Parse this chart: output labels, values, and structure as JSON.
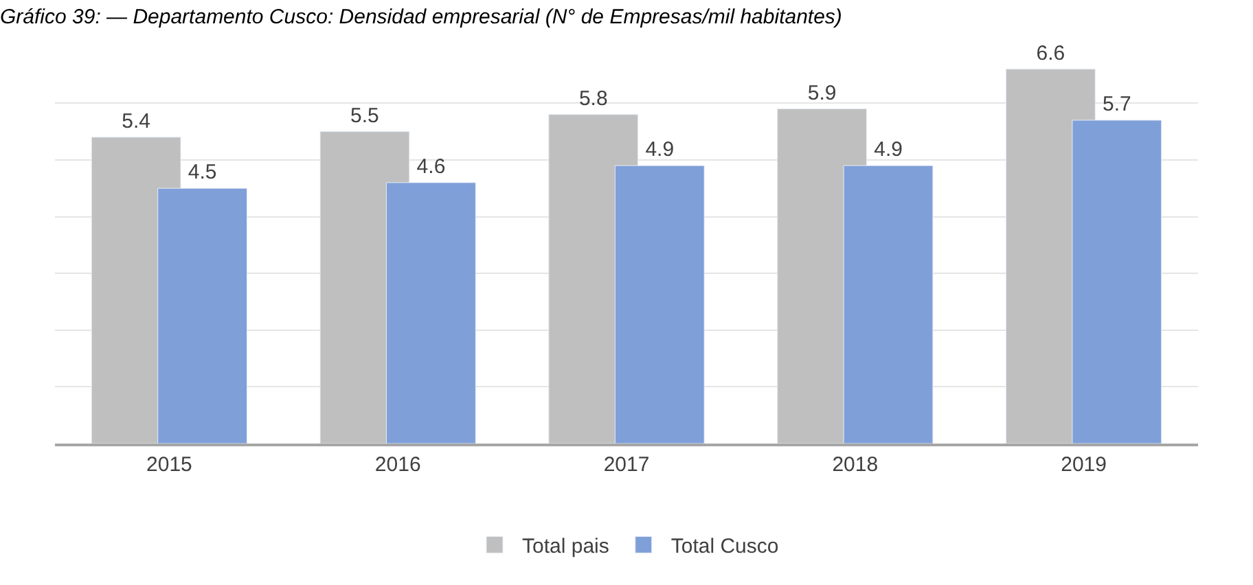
{
  "chart_data": {
    "type": "bar",
    "title": "Gráfico 39: — Departamento Cusco: Densidad empresarial (N° de Empresas/mil habitantes)",
    "categories": [
      "2015",
      "2016",
      "2017",
      "2018",
      "2019"
    ],
    "series": [
      {
        "name": "Total pais",
        "color": "#bfbfbf",
        "values": [
          5.4,
          5.5,
          5.8,
          5.9,
          6.6
        ]
      },
      {
        "name": "Total Cusco",
        "color": "#7f9fd9",
        "values": [
          4.5,
          4.6,
          4.9,
          4.9,
          5.7
        ]
      }
    ],
    "tick_labels": "x",
    "grid": "y",
    "legend": "bottom",
    "data_labels": true
  }
}
